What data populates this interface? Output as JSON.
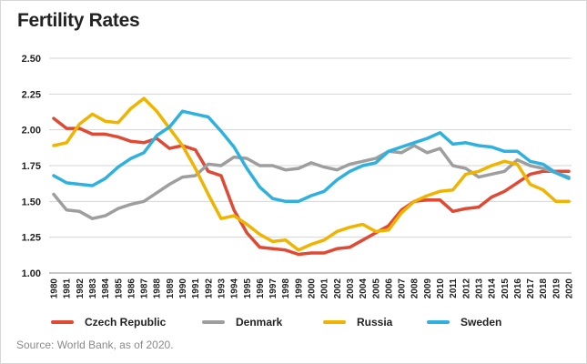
{
  "title": "Fertility Rates",
  "source": "Source: World Bank, as of 2020.",
  "chart_data": {
    "type": "line",
    "title": "Fertility Rates",
    "xlabel": "",
    "ylabel": "",
    "ylim": [
      1.0,
      2.5
    ],
    "yticks": [
      "1.00",
      "1.25",
      "1.50",
      "1.75",
      "2.00",
      "2.25",
      "2.50"
    ],
    "grid": true,
    "legend_position": "bottom",
    "x": [
      "1980",
      "1981",
      "1982",
      "1983",
      "1984",
      "1985",
      "1986",
      "1987",
      "1988",
      "1989",
      "1990",
      "1991",
      "1992",
      "1993",
      "1994",
      "1995",
      "1996",
      "1997",
      "1998",
      "1999",
      "2000",
      "2001",
      "2002",
      "2003",
      "2004",
      "2005",
      "2006",
      "2007",
      "2008",
      "2009",
      "2010",
      "2011",
      "2012",
      "2013",
      "2014",
      "2015",
      "2016",
      "2017",
      "2018",
      "2019",
      "2020"
    ],
    "series": [
      {
        "name": "Czech Republic",
        "color": "#e04a35",
        "values": [
          2.08,
          2.01,
          2.01,
          1.97,
          1.97,
          1.95,
          1.92,
          1.91,
          1.94,
          1.87,
          1.89,
          1.86,
          1.71,
          1.68,
          1.44,
          1.28,
          1.18,
          1.17,
          1.16,
          1.13,
          1.14,
          1.14,
          1.17,
          1.18,
          1.23,
          1.28,
          1.33,
          1.44,
          1.5,
          1.51,
          1.51,
          1.43,
          1.45,
          1.46,
          1.53,
          1.57,
          1.63,
          1.69,
          1.71,
          1.71,
          1.71
        ]
      },
      {
        "name": "Denmark",
        "color": "#9e9e9e",
        "values": [
          1.55,
          1.44,
          1.43,
          1.38,
          1.4,
          1.45,
          1.48,
          1.5,
          1.56,
          1.62,
          1.67,
          1.68,
          1.76,
          1.75,
          1.81,
          1.8,
          1.75,
          1.75,
          1.72,
          1.73,
          1.77,
          1.74,
          1.72,
          1.76,
          1.78,
          1.8,
          1.85,
          1.84,
          1.89,
          1.84,
          1.87,
          1.75,
          1.73,
          1.67,
          1.69,
          1.71,
          1.79,
          1.75,
          1.73,
          1.7,
          1.67
        ]
      },
      {
        "name": "Russia",
        "color": "#f0b400",
        "values": [
          1.89,
          1.91,
          2.04,
          2.11,
          2.06,
          2.05,
          2.15,
          2.22,
          2.13,
          2.01,
          1.89,
          1.73,
          1.55,
          1.38,
          1.4,
          1.34,
          1.27,
          1.22,
          1.23,
          1.16,
          1.2,
          1.23,
          1.29,
          1.32,
          1.34,
          1.29,
          1.3,
          1.42,
          1.5,
          1.54,
          1.57,
          1.58,
          1.69,
          1.71,
          1.75,
          1.78,
          1.76,
          1.62,
          1.58,
          1.5,
          1.5
        ]
      },
      {
        "name": "Sweden",
        "color": "#2fb1e0",
        "values": [
          1.68,
          1.63,
          1.62,
          1.61,
          1.66,
          1.74,
          1.8,
          1.84,
          1.96,
          2.02,
          2.13,
          2.11,
          2.09,
          1.99,
          1.88,
          1.73,
          1.6,
          1.52,
          1.5,
          1.5,
          1.54,
          1.57,
          1.65,
          1.71,
          1.75,
          1.77,
          1.85,
          1.88,
          1.91,
          1.94,
          1.98,
          1.9,
          1.91,
          1.89,
          1.88,
          1.85,
          1.85,
          1.78,
          1.76,
          1.7,
          1.66
        ]
      }
    ]
  }
}
